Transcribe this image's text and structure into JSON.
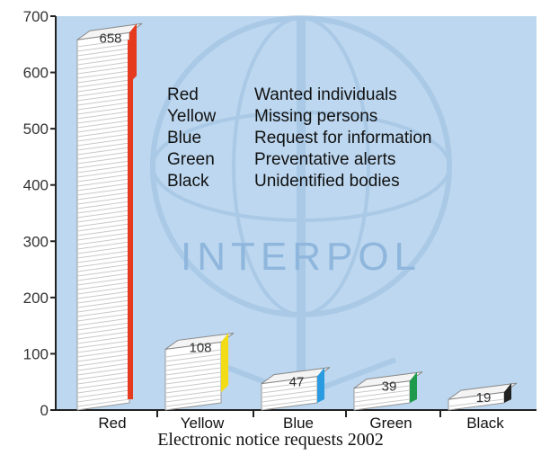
{
  "caption": "Electronic notice requests 2002",
  "colors": {
    "plot_bg": "#bcd7ef",
    "watermark": "#9cbfe0",
    "sheet": "#ffffff",
    "sheet_line": "#c9c9c9",
    "axis": "#222222"
  },
  "watermark_text": "INTERPOL",
  "legend": [
    {
      "key": "Red",
      "meaning": "Wanted individuals"
    },
    {
      "key": "Yellow",
      "meaning": "Missing persons"
    },
    {
      "key": "Blue",
      "meaning": "Request for information"
    },
    {
      "key": "Green",
      "meaning": "Preventative alerts"
    },
    {
      "key": "Black",
      "meaning": "Unidentified bodies"
    }
  ],
  "chart_data": {
    "type": "bar",
    "title": "",
    "xlabel": "",
    "ylabel": "",
    "ylim": [
      0,
      700
    ],
    "yticks": [
      0,
      100,
      200,
      300,
      400,
      500,
      600,
      700
    ],
    "categories": [
      "Red",
      "Yellow",
      "Blue",
      "Green",
      "Black"
    ],
    "values": [
      658,
      108,
      47,
      39,
      19
    ],
    "value_labels": [
      "658",
      "108",
      "47",
      "39",
      "19"
    ],
    "tab_colors": [
      "#e53a1e",
      "#f2dc16",
      "#2a9be0",
      "#1f9a4a",
      "#222222"
    ],
    "grid": false,
    "legend_position": "upper-middle"
  }
}
